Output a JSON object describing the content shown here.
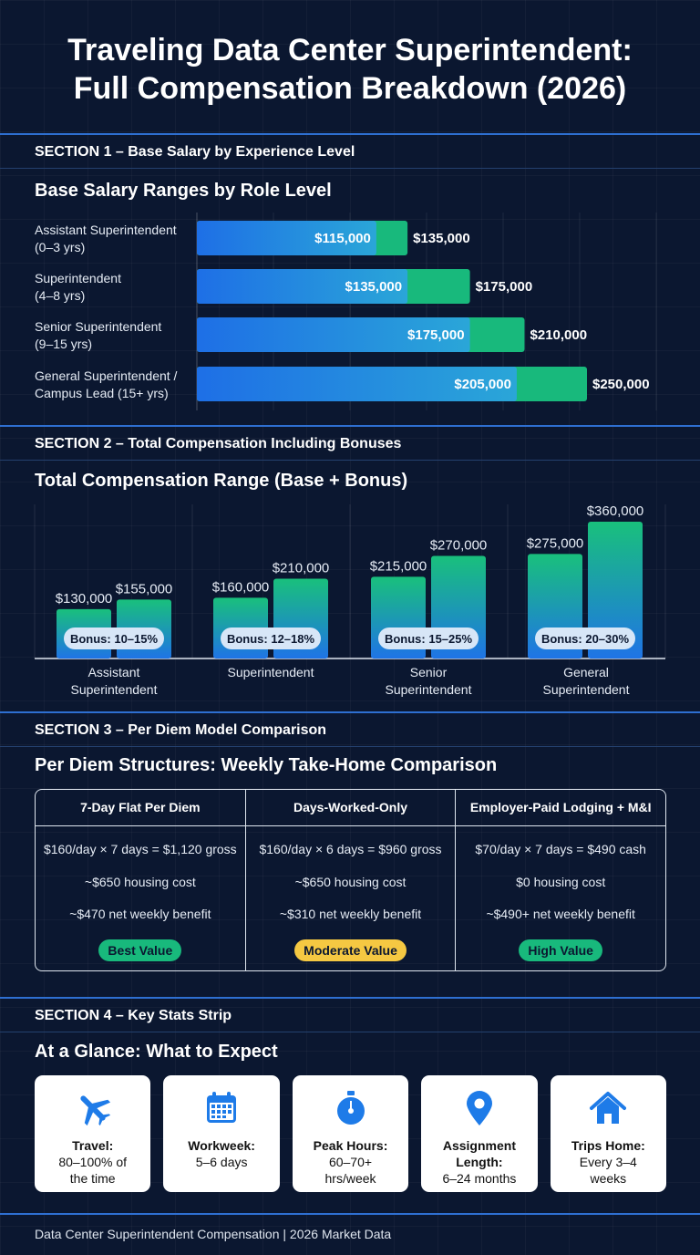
{
  "title_line1": "Traveling Data Center Superintendent:",
  "title_line2": "Full Compensation Breakdown (2026)",
  "colors": {
    "blue": "#1e7be8",
    "green": "#18b97c",
    "bg": "#0b1730"
  },
  "section1": {
    "label": "SECTION 1 – Base Salary by Experience Level",
    "title": "Base Salary Ranges by Role Level",
    "rows": [
      {
        "line1": "Assistant Superintendent",
        "line2": "(0–3 yrs)"
      },
      {
        "line1": "Superintendent",
        "line2": "(4–8 yrs)"
      },
      {
        "line1": "Senior Superintendent",
        "line2": "(9–15 yrs)"
      },
      {
        "line1": "General Superintendent /",
        "line2": "Campus Lead (15+ yrs)"
      }
    ]
  },
  "section2": {
    "label": "SECTION 2 – Total Compensation Including Bonuses",
    "title": "Total Compensation Range (Base + Bonus)",
    "categories": [
      {
        "line1": "Assistant",
        "line2": "Superintendent"
      },
      {
        "line1": "Superintendent",
        "line2": ""
      },
      {
        "line1": "Senior",
        "line2": "Superintendent"
      },
      {
        "line1": "General",
        "line2": "Superintendent"
      }
    ]
  },
  "section3": {
    "label": "SECTION 3 – Per Diem Model Comparison",
    "title": "Per Diem Structures: Weekly Take-Home Comparison",
    "columns": [
      {
        "header": "7-Day Flat Per Diem",
        "line1": "$160/day × 7 days = $1,120 gross",
        "line2": "~$650 housing cost",
        "line3": "~$470 net weekly benefit",
        "badge": "Best Value",
        "badge_bg": "#18b97c",
        "badge_fg": "#0b1730"
      },
      {
        "header": "Days-Worked-Only",
        "line1": "$160/day × 6 days = $960 gross",
        "line2": "~$650 housing cost",
        "line3": "~$310 net weekly benefit",
        "badge": "Moderate Value",
        "badge_bg": "#f5c842",
        "badge_fg": "#0b1730"
      },
      {
        "header": "Employer-Paid Lodging + M&I",
        "line1": "$70/day × 7 days = $490 cash",
        "line2": "$0 housing cost",
        "line3": "~$490+ net weekly benefit",
        "badge": "High Value",
        "badge_bg": "#18b97c",
        "badge_fg": "#0b1730"
      }
    ]
  },
  "section4": {
    "label": "SECTION 4 – Key Stats Strip",
    "title": "At a Glance: What to Expect",
    "cards": [
      {
        "icon": "airplane-icon",
        "title": "Travel:",
        "value1": "80–100% of",
        "value2": "the time"
      },
      {
        "icon": "calendar-icon",
        "title": "Workweek:",
        "value1": "5–6 days",
        "value2": ""
      },
      {
        "icon": "stopwatch-icon",
        "title": "Peak Hours:",
        "value1": "60–70+",
        "value2": "hrs/week"
      },
      {
        "icon": "location-pin-icon",
        "title": "Assignment",
        "title2": "Length:",
        "value1": "6–24 months",
        "value2": ""
      },
      {
        "icon": "home-icon",
        "title": "Trips Home:",
        "value1": "Every 3–4",
        "value2": "weeks"
      }
    ]
  },
  "footer": "Data Center Superintendent Compensation | 2026 Market Data",
  "chart_data": [
    {
      "type": "bar",
      "orientation": "horizontal",
      "title": "Base Salary Ranges by Role Level",
      "categories": [
        "Assistant Superintendent (0–3 yrs)",
        "Superintendent (4–8 yrs)",
        "Senior Superintendent (9–15 yrs)",
        "General Superintendent / Campus Lead (15+ yrs)"
      ],
      "series": [
        {
          "values": [
            115000,
            135000,
            175000,
            205000
          ]
        },
        {
          "values": [
            135000,
            175000,
            210000,
            250000
          ]
        }
      ],
      "value_labels_low": [
        "$115,000",
        "$135,000",
        "$175,000",
        "$205,000"
      ],
      "value_labels_high": [
        "$135,000",
        "$175,000",
        "$210,000",
        "$250,000"
      ],
      "grid": true
    },
    {
      "type": "bar",
      "title": "Total Compensation Range (Base + Bonus)",
      "categories": [
        "Assistant Superintendent",
        "Superintendent",
        "Senior Superintendent",
        "General Superintendent"
      ],
      "series": [
        {
          "values": [
            130000,
            160000,
            215000,
            275000
          ]
        },
        {
          "values": [
            155000,
            210000,
            270000,
            360000
          ]
        }
      ],
      "value_labels_low": [
        "$130,000",
        "$160,000",
        "$215,000",
        "$275,000"
      ],
      "value_labels_high": [
        "$155,000",
        "$210,000",
        "$270,000",
        "$360,000"
      ],
      "bonus_labels": [
        "Bonus: 10–15%",
        "Bonus: 12–18%",
        "Bonus: 15–25%",
        "Bonus: 20–30%"
      ],
      "grid": true
    }
  ]
}
